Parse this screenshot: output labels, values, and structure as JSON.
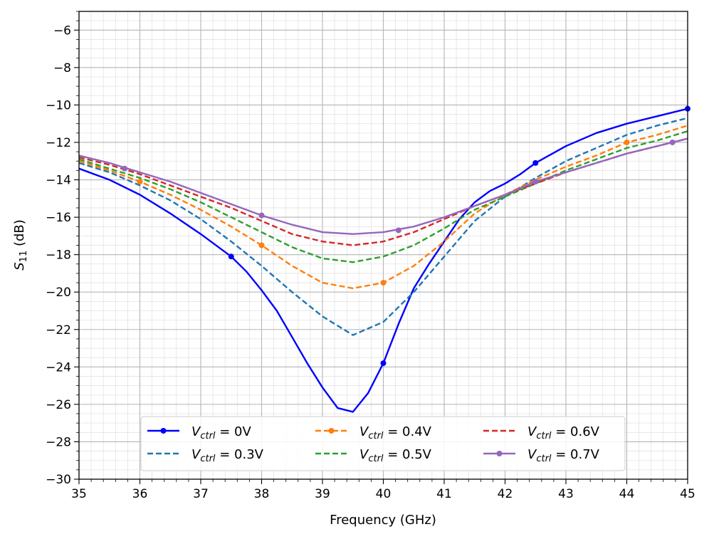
{
  "chart_data": {
    "type": "line",
    "title": "",
    "xlabel": "Frequency (GHz)",
    "ylabel": "S11 (dB)",
    "ylabel_base": "S",
    "ylabel_sub": "11",
    "ylabel_unit": " (dB)",
    "xlim": [
      35,
      45
    ],
    "ylim": [
      -30,
      -5
    ],
    "xticks": [
      35,
      36,
      37,
      38,
      39,
      40,
      41,
      42,
      43,
      44,
      45
    ],
    "yticks": [
      -30,
      -28,
      -26,
      -24,
      -22,
      -20,
      -18,
      -16,
      -14,
      -12,
      -10,
      -8,
      -6
    ],
    "ytick_labels": [
      "−30",
      "−28",
      "−26",
      "−24",
      "−22",
      "−20",
      "−18",
      "−16",
      "−14",
      "−12",
      "−10",
      "−8",
      "−6"
    ],
    "grid": "major and minor",
    "legend": {
      "placement": "bottom-center",
      "columns": 3,
      "label_symbol": "V",
      "label_sub": "ctrl",
      "label_eq": " = "
    },
    "x": [
      35,
      35.5,
      36,
      36.5,
      37,
      37.5,
      38,
      38.5,
      39,
      39.5,
      40,
      40.5,
      41,
      41.5,
      42,
      42.5,
      43,
      43.5,
      44,
      44.5,
      45
    ],
    "series": [
      {
        "name": "Vctrl = 0V",
        "value_label": "0V",
        "color": "#0000ff",
        "style": "solid",
        "markers": true,
        "x": [
          35,
          35.5,
          36,
          36.5,
          37,
          37.5,
          37.75,
          38,
          38.25,
          38.5,
          38.75,
          39,
          39.25,
          39.5,
          39.75,
          40,
          40.25,
          40.5,
          40.75,
          41,
          41.25,
          41.5,
          41.75,
          42,
          42.25,
          42.5,
          43,
          43.5,
          44,
          44.5,
          45
        ],
        "values": [
          -13.4,
          -14.0,
          -14.8,
          -15.8,
          -16.9,
          -18.1,
          -18.9,
          -19.9,
          -21.0,
          -22.4,
          -23.8,
          -25.1,
          -26.2,
          -26.4,
          -25.4,
          -23.8,
          -21.7,
          -19.8,
          -18.5,
          -17.3,
          -16.1,
          -15.2,
          -14.6,
          -14.2,
          -13.7,
          -13.1,
          -12.2,
          -11.5,
          -11.0,
          -10.6,
          -10.2
        ],
        "marker_x": [
          37.5,
          40,
          42.5,
          45
        ],
        "marker_values": [
          -18.1,
          -23.8,
          -13.1,
          -10.2
        ]
      },
      {
        "name": "Vctrl = 0.3V",
        "value_label": "0.3V",
        "color": "#1f77b4",
        "style": "dashed",
        "markers": false,
        "values": [
          -13.1,
          -13.6,
          -14.3,
          -15.1,
          -16.1,
          -17.3,
          -18.6,
          -20.0,
          -21.3,
          -22.3,
          -21.6,
          -20.0,
          -18.1,
          -16.2,
          -14.9,
          -13.9,
          -13.0,
          -12.3,
          -11.6,
          -11.1,
          -10.7
        ]
      },
      {
        "name": "Vctrl = 0.4V",
        "value_label": "0.4V",
        "color": "#ff7f0e",
        "style": "dashed",
        "markers": true,
        "values": [
          -13.0,
          -13.5,
          -14.1,
          -14.8,
          -15.6,
          -16.5,
          -17.5,
          -18.6,
          -19.5,
          -19.8,
          -19.5,
          -18.6,
          -17.3,
          -15.8,
          -14.8,
          -14.0,
          -13.3,
          -12.7,
          -12.0,
          -11.6,
          -11.1
        ],
        "marker_x": [
          36,
          38,
          40,
          44
        ],
        "marker_values": [
          -14.1,
          -17.5,
          -19.5,
          -12.0
        ]
      },
      {
        "name": "Vctrl = 0.5V",
        "value_label": "0.5V",
        "color": "#2ca02c",
        "style": "dashed",
        "markers": false,
        "values": [
          -12.9,
          -13.4,
          -13.9,
          -14.5,
          -15.2,
          -16.0,
          -16.8,
          -17.6,
          -18.2,
          -18.4,
          -18.1,
          -17.5,
          -16.6,
          -15.6,
          -14.9,
          -14.2,
          -13.5,
          -12.9,
          -12.3,
          -11.9,
          -11.4
        ]
      },
      {
        "name": "Vctrl = 0.6V",
        "value_label": "0.6V",
        "color": "#d62728",
        "style": "dashed",
        "markers": false,
        "values": [
          -12.8,
          -13.2,
          -13.7,
          -14.3,
          -14.9,
          -15.5,
          -16.2,
          -16.9,
          -17.3,
          -17.5,
          -17.3,
          -16.8,
          -16.1,
          -15.4,
          -14.8,
          -14.2,
          -13.6,
          -13.1,
          -12.6,
          -12.2,
          -11.8
        ]
      },
      {
        "name": "Vctrl = 0.7V",
        "value_label": "0.7V",
        "color": "#9467bd",
        "style": "solid",
        "markers": true,
        "values": [
          -12.7,
          -13.1,
          -13.6,
          -14.1,
          -14.7,
          -15.3,
          -15.9,
          -16.4,
          -16.8,
          -16.9,
          -16.8,
          -16.5,
          -16.0,
          -15.4,
          -14.8,
          -14.1,
          -13.6,
          -13.1,
          -12.6,
          -12.2,
          -11.8
        ],
        "marker_x": [
          35.75,
          38,
          40.25,
          42.5,
          44.75
        ],
        "marker_values": [
          -13.4,
          -15.9,
          -16.7,
          -14.1,
          -12.0
        ]
      }
    ]
  }
}
